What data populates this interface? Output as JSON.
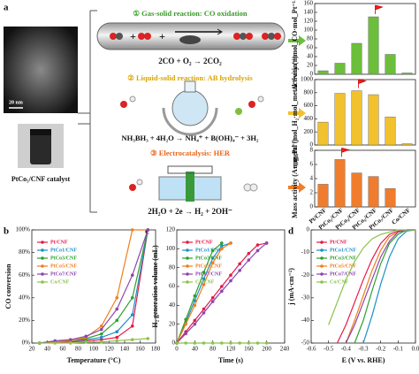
{
  "panel_labels": [
    "a",
    "b",
    "c",
    "d"
  ],
  "scheme": {
    "scale_bar": "20 nm",
    "catalyst_label": "PtCo₅/CNF catalyst",
    "reactions": [
      {
        "title": "① Gas-solid reaction: CO oxidation",
        "equation": "2CO + O₂ → 2CO₂",
        "color": "#3a9a2a"
      },
      {
        "title": "② Liquid-solid reaction: AB hydrolysis",
        "equation": "NH₃BH₃ + 4H₂O → NH₄⁺ + B(OH)₄⁻ + 3H₂",
        "color": "#d9a400"
      },
      {
        "title": "③ Electrocatalysis: HER",
        "equation": "2H₂O + 2e → H₂ + 2OH⁻",
        "color": "#e8661a"
      }
    ]
  },
  "chart_data": [
    {
      "type": "bar",
      "ylabel": "Activity (mmol_CO·mol_Pt⁻¹·s⁻¹)",
      "values": [
        8,
        25,
        70,
        130,
        45,
        3
      ],
      "color": "#6bbf3a",
      "ylim": [
        0,
        160
      ],
      "yticks": [
        0,
        20,
        40,
        60,
        80,
        100,
        120,
        140,
        160
      ]
    },
    {
      "type": "bar",
      "ylabel": "r_metal (mol_H₂·mol_metal⁻¹·min⁻¹)",
      "values": [
        350,
        790,
        830,
        770,
        430,
        20
      ],
      "color": "#f2c12e",
      "ylim": [
        0,
        1000
      ],
      "yticks": [
        0,
        200,
        400,
        600,
        800,
        1000
      ]
    },
    {
      "type": "bar",
      "ylabel": "Mass activity (A·mg_Pt⁻¹)",
      "categories": [
        "Pt/CNF",
        "PtCo₁/CNF",
        "PtCo₃/CNF",
        "PtCo₅/CNF",
        "PtCo₇/CNF",
        "Co/CNF"
      ],
      "values": [
        3.2,
        6.7,
        4.8,
        4.3,
        2.6,
        null
      ],
      "color": "#ef7d2d",
      "ylim": [
        0,
        8
      ],
      "yticks": [
        0,
        2,
        4,
        6,
        8
      ]
    },
    {
      "type": "line",
      "xlabel": "Temperature (°C)",
      "ylabel": "CO conversion",
      "legend": "upper left",
      "x": [
        30,
        50,
        70,
        90,
        110,
        130,
        150,
        170
      ],
      "series": [
        {
          "name": "Pt/CNF",
          "color": "#e6194b",
          "values": [
            0,
            1,
            1,
            2,
            3,
            5,
            15,
            100
          ]
        },
        {
          "name": "PtCo1/CNF",
          "color": "#1e90c8",
          "values": [
            0,
            1,
            2,
            3,
            5,
            10,
            25,
            100
          ]
        },
        {
          "name": "PtCo3/CNF",
          "color": "#2ca02c",
          "values": [
            0,
            1,
            2,
            4,
            8,
            20,
            40,
            100
          ]
        },
        {
          "name": "PtCo5/CNF",
          "color": "#f07f1a",
          "values": [
            0,
            1,
            2,
            5,
            15,
            40,
            100,
            100
          ]
        },
        {
          "name": "PtCo7/CNF",
          "color": "#8e44ad",
          "values": [
            0,
            2,
            3,
            6,
            12,
            30,
            60,
            100
          ]
        },
        {
          "name": "Co/CNF",
          "color": "#8bc34a",
          "values": [
            0,
            0,
            0,
            1,
            1,
            2,
            3,
            4
          ]
        }
      ],
      "xlim": [
        20,
        180
      ],
      "xticks": [
        20,
        40,
        60,
        80,
        100,
        120,
        140,
        160,
        180
      ],
      "ylim": [
        0,
        100
      ],
      "yticks": [
        {
          "value": 0,
          "label": "0%"
        },
        {
          "value": 20,
          "label": "20%"
        },
        {
          "value": 40,
          "label": "40%"
        },
        {
          "value": 60,
          "label": "60%"
        },
        {
          "value": 80,
          "label": "80%"
        },
        {
          "value": 100,
          "label": "100%"
        }
      ]
    },
    {
      "type": "line",
      "xlabel": "Time (s)",
      "ylabel": "H₂ generation volume (mL)",
      "legend": "upper left",
      "x": [
        0,
        20,
        40,
        60,
        80,
        100,
        120,
        140,
        160,
        180,
        200
      ],
      "series": [
        {
          "name": "Pt/CNF",
          "color": "#e6194b",
          "values": [
            0,
            12,
            24,
            36,
            48,
            60,
            72,
            84,
            95,
            104,
            106
          ]
        },
        {
          "name": "PtCo1/CNF",
          "color": "#1e90c8",
          "values": [
            0,
            22,
            45,
            68,
            90,
            103,
            106,
            null,
            null,
            null,
            null
          ]
        },
        {
          "name": "PtCo3/CNF",
          "color": "#2ca02c",
          "values": [
            0,
            25,
            50,
            75,
            98,
            106,
            null,
            null,
            null,
            null,
            null
          ]
        },
        {
          "name": "PtCo5/CNF",
          "color": "#f07f1a",
          "values": [
            0,
            20,
            40,
            62,
            85,
            100,
            106,
            null,
            null,
            null,
            null
          ]
        },
        {
          "name": "PtCo7/CNF",
          "color": "#8e44ad",
          "values": [
            0,
            10,
            20,
            32,
            44,
            55,
            66,
            77,
            88,
            98,
            106
          ]
        },
        {
          "name": "Co/CNF",
          "color": "#8bc34a",
          "values": [
            0,
            0,
            0,
            0,
            0,
            0,
            0,
            0,
            0,
            0,
            0
          ]
        }
      ],
      "xlim": [
        0,
        240
      ],
      "xticks": [
        0,
        40,
        80,
        120,
        160,
        200,
        240
      ],
      "ylim": [
        0,
        120
      ],
      "yticks": [
        0,
        20,
        40,
        60,
        80,
        100,
        120
      ]
    },
    {
      "type": "line",
      "xlabel": "E (V vs. RHE)",
      "ylabel": "j (mA·cm⁻²)",
      "legend": "upper left",
      "markers": false,
      "x": [
        -0.5,
        -0.45,
        -0.4,
        -0.35,
        -0.3,
        -0.25,
        -0.2,
        -0.15,
        -0.1,
        -0.05,
        0
      ],
      "series": [
        {
          "name": "Pt/CNF",
          "color": "#e6194b",
          "values": [
            null,
            -50,
            -42,
            -32,
            -22,
            -13,
            -6,
            -2,
            -0.5,
            0,
            0
          ]
        },
        {
          "name": "PtCo1/CNF",
          "color": "#1e90c8",
          "values": [
            null,
            null,
            null,
            null,
            -50,
            -38,
            -24,
            -12,
            -4,
            -0.5,
            0
          ]
        },
        {
          "name": "PtCo3/CNF",
          "color": "#2ca02c",
          "values": [
            null,
            null,
            null,
            -50,
            -40,
            -27,
            -15,
            -6,
            -2,
            0,
            0
          ]
        },
        {
          "name": "PtCo5/CNF",
          "color": "#f07f1a",
          "values": [
            null,
            null,
            -50,
            -40,
            -29,
            -18,
            -9,
            -3,
            -1,
            0,
            0
          ]
        },
        {
          "name": "PtCo7/CNF",
          "color": "#8e44ad",
          "values": [
            null,
            null,
            -50,
            -42,
            -32,
            -22,
            -12,
            -5,
            -1,
            0,
            0
          ]
        },
        {
          "name": "Co/CNF",
          "color": "#8bc34a",
          "values": [
            -42,
            -32,
            -22,
            -14,
            -8,
            -4,
            -2,
            -1,
            0,
            0,
            0
          ]
        }
      ],
      "xlim": [
        -0.6,
        0
      ],
      "xticks": [
        -0.6,
        -0.5,
        -0.4,
        -0.3,
        -0.2,
        -0.1,
        {
          "value": 0,
          "label": "0.0"
        }
      ],
      "ylim": [
        -50,
        0
      ],
      "yticks": [
        -50,
        -40,
        -30,
        -20,
        -10,
        0
      ]
    }
  ]
}
